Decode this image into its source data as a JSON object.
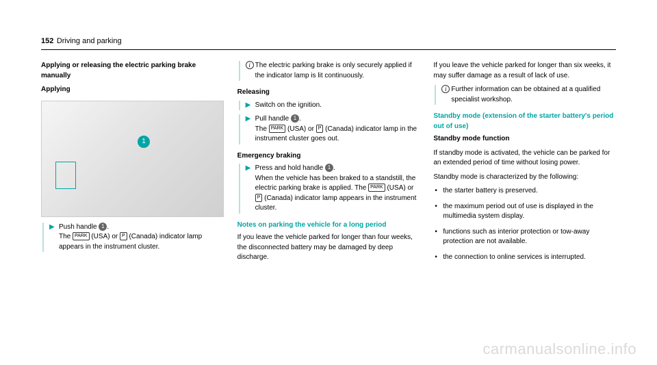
{
  "header": {
    "page_num": "152",
    "section": "Driving and parking"
  },
  "col1": {
    "title": "Applying or releasing the electric parking brake manually",
    "applying_heading": "Applying",
    "figure_marker": "1",
    "push_text": "Push handle ",
    "push_after": ".",
    "push_desc1": "The ",
    "push_park": "PARK",
    "push_desc2": " (USA) or ",
    "push_p": "P",
    "push_desc3": " (Canada) indicator lamp appears in the instrument cluster."
  },
  "col2": {
    "info_text": "The electric parking brake is only securely applied if the indicator lamp is lit continuously.",
    "releasing_heading": "Releasing",
    "switch_text": "Switch on the ignition.",
    "pull_text": "Pull handle ",
    "pull_after": ".",
    "pull_desc1": "The ",
    "pull_park": "PARK",
    "pull_desc2": " (USA) or ",
    "pull_p": "P",
    "pull_desc3": " (Canada) indicator lamp in the instrument cluster goes out.",
    "emergency_heading": "Emergency braking",
    "emergency_text": "Press and hold handle ",
    "emergency_after": ".",
    "emergency_desc1": "When the vehicle has been braked to a standstill, the electric parking brake is applied. The ",
    "emergency_park": "PARK",
    "emergency_desc2": " (USA) or ",
    "emergency_p": "P",
    "emergency_desc3": " (Canada) indicator lamp appears in the instrument cluster.",
    "notes_heading": "Notes on parking the vehicle for a long period",
    "notes_text": "If you leave the vehicle parked for longer than four weeks, the disconnected battery may be damaged by deep discharge."
  },
  "col3": {
    "intro_text": "If you leave the vehicle parked for longer than six weeks, it may suffer damage as a result of lack of use.",
    "info_text": "Further information can be obtained at a qualified specialist workshop.",
    "standby_heading": "Standby mode (extension of the starter battery's period out of use)",
    "function_heading": "Standby mode function",
    "function_text": "If standby mode is activated, the vehicle can be parked for an extended period of time without losing power.",
    "char_text": "Standby mode is characterized by the following:",
    "bullets": [
      "the starter battery is preserved.",
      "the maximum period out of use is displayed in the multimedia system display.",
      "functions such as interior protection or tow-away protection are not available.",
      "the connection to online services is interrupted."
    ]
  },
  "watermark": "carmanualsonline.info"
}
